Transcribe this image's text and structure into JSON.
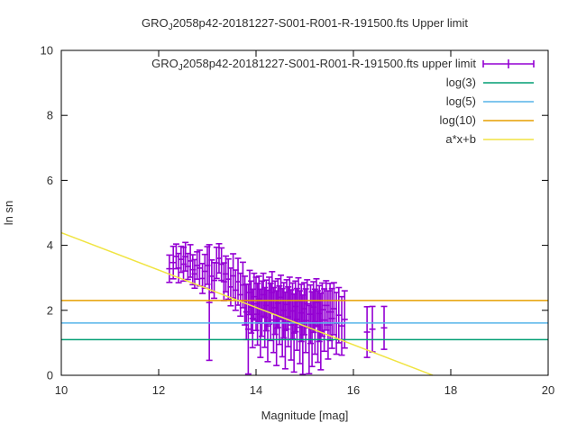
{
  "window": {
    "background": "#ffffff",
    "text_color": "#303030"
  },
  "title": {
    "prefix": "GRO",
    "subscript": "J",
    "rest": "2058p42-20181227-S001-R001-R-191500.fts Upper limit",
    "full": "GRO_J2058p42-20181227-S001-R001-R-191500.fts Upper limit"
  },
  "chart_data": {
    "type": "scatter",
    "title": "GRO_J2058p42-20181227-S001-R001-R-191500.fts Upper limit",
    "xlabel": "Magnitude [mag]",
    "ylabel": "ln sn",
    "xlim": [
      10,
      20
    ],
    "ylim": [
      0,
      10
    ],
    "xticks": [
      10,
      12,
      14,
      16,
      18,
      20
    ],
    "yticks": [
      0,
      2,
      4,
      6,
      8,
      10
    ],
    "grid": false,
    "legend_position": "top-right-inside",
    "series": [
      {
        "name": "GRO_J2058p42-20181227-S001-R001-R-191500.fts upper limit",
        "name_parts": {
          "prefix": "GRO",
          "subscript": "J",
          "rest": "2058p42-20181227-S001-R001-R-191500.fts upper limit"
        },
        "type": "errorbars",
        "color": "#9400D3",
        "points": [
          [
            12.22,
            3.28,
            0.42
          ],
          [
            12.3,
            3.47,
            0.5
          ],
          [
            12.36,
            3.66,
            0.38
          ],
          [
            12.41,
            3.3,
            0.45
          ],
          [
            12.46,
            3.57,
            0.4
          ],
          [
            12.51,
            3.42,
            0.52
          ],
          [
            12.55,
            3.65,
            0.44
          ],
          [
            12.6,
            3.35,
            0.4
          ],
          [
            12.65,
            3.52,
            0.5
          ],
          [
            12.7,
            3.25,
            0.46
          ],
          [
            12.74,
            3.12,
            0.44
          ],
          [
            12.79,
            3.38,
            0.42
          ],
          [
            12.84,
            3.3,
            0.55
          ],
          [
            12.9,
            2.98,
            0.46
          ],
          [
            12.95,
            3.2,
            0.52
          ],
          [
            13.0,
            3.38,
            0.58
          ],
          [
            13.04,
            2.24,
            1.78
          ],
          [
            13.09,
            3.05,
            0.5
          ],
          [
            13.14,
            2.92,
            0.55
          ],
          [
            13.19,
            3.46,
            0.48
          ],
          [
            13.24,
            3.6,
            0.45
          ],
          [
            13.29,
            3.42,
            0.5
          ],
          [
            13.34,
            2.88,
            0.58
          ],
          [
            13.38,
            3.12,
            0.55
          ],
          [
            13.43,
            2.96,
            0.62
          ],
          [
            13.48,
            2.72,
            0.58
          ],
          [
            13.53,
            3.06,
            0.68
          ],
          [
            13.58,
            2.62,
            0.62
          ],
          [
            13.63,
            2.88,
            0.72
          ],
          [
            13.68,
            2.48,
            0.66
          ],
          [
            13.73,
            2.78,
            0.7
          ],
          [
            13.77,
            2.3,
            0.75
          ],
          [
            13.8,
            1.95,
            0.85
          ],
          [
            13.84,
            1.42,
            1.38
          ],
          [
            13.87,
            2.55,
            0.68
          ],
          [
            13.9,
            2.1,
            0.8
          ],
          [
            13.93,
            1.75,
            0.9
          ],
          [
            13.96,
            2.42,
            0.72
          ],
          [
            14.0,
            2.2,
            0.82
          ],
          [
            14.03,
            1.88,
            0.95
          ],
          [
            14.06,
            2.35,
            0.7
          ],
          [
            14.09,
            1.6,
            1.05
          ],
          [
            14.12,
            2.05,
            0.85
          ],
          [
            14.15,
            2.48,
            0.66
          ],
          [
            14.18,
            1.78,
            0.92
          ],
          [
            14.21,
            2.15,
            0.78
          ],
          [
            14.24,
            1.52,
            1.1
          ],
          [
            14.27,
            2.3,
            0.72
          ],
          [
            14.3,
            1.95,
            0.88
          ],
          [
            14.33,
            2.55,
            0.64
          ],
          [
            14.36,
            1.7,
            1.0
          ],
          [
            14.39,
            2.08,
            0.82
          ],
          [
            14.42,
            1.45,
            1.15
          ],
          [
            14.45,
            2.22,
            0.75
          ],
          [
            14.48,
            1.85,
            0.9
          ],
          [
            14.51,
            2.4,
            0.68
          ],
          [
            14.54,
            1.62,
            1.05
          ],
          [
            14.57,
            2.0,
            0.85
          ],
          [
            14.6,
            1.38,
            1.18
          ],
          [
            14.63,
            2.18,
            0.76
          ],
          [
            14.66,
            1.8,
            0.92
          ],
          [
            14.69,
            2.32,
            0.7
          ],
          [
            14.72,
            1.55,
            1.08
          ],
          [
            14.75,
            1.98,
            0.86
          ],
          [
            14.78,
            1.3,
            1.2
          ],
          [
            14.81,
            2.12,
            0.78
          ],
          [
            14.84,
            1.72,
            0.95
          ],
          [
            14.87,
            2.28,
            0.72
          ],
          [
            14.9,
            1.48,
            1.12
          ],
          [
            14.93,
            1.92,
            0.88
          ],
          [
            14.96,
            1.25,
            1.22
          ],
          [
            14.99,
            2.05,
            0.8
          ],
          [
            15.02,
            1.68,
            0.98
          ],
          [
            15.05,
            2.2,
            0.74
          ],
          [
            15.09,
            1.1,
            1.05
          ],
          [
            15.12,
            1.88,
            0.9
          ],
          [
            15.15,
            1.42,
            1.15
          ],
          [
            15.18,
            2.1,
            0.78
          ],
          [
            15.21,
            1.65,
            1.0
          ],
          [
            15.24,
            2.25,
            0.72
          ],
          [
            15.27,
            1.5,
            1.1
          ],
          [
            15.3,
            1.9,
            0.86
          ],
          [
            15.33,
            1.35,
            1.18
          ],
          [
            15.36,
            2.02,
            0.82
          ],
          [
            15.4,
            1.7,
            0.96
          ],
          [
            15.44,
            2.15,
            0.76
          ],
          [
            15.48,
            1.55,
            1.05
          ],
          [
            15.52,
            1.95,
            0.88
          ],
          [
            15.56,
            1.75,
            0.92
          ],
          [
            15.6,
            2.05,
            0.8
          ],
          [
            15.65,
            1.6,
            0.95
          ],
          [
            15.7,
            1.85,
            0.85
          ],
          [
            15.76,
            1.52,
            0.9
          ],
          [
            15.82,
            1.72,
            0.88
          ],
          [
            16.28,
            1.33,
            0.78
          ],
          [
            16.39,
            1.42,
            0.7
          ],
          [
            16.63,
            1.46,
            0.66
          ]
        ]
      },
      {
        "name": "log(3)",
        "type": "hline",
        "y": 1.0986,
        "color": "#009E73"
      },
      {
        "name": "log(5)",
        "type": "hline",
        "y": 1.6094,
        "color": "#56B4E9"
      },
      {
        "name": "log(10)",
        "type": "hline",
        "y": 2.3026,
        "color": "#E69F00"
      },
      {
        "name": "a*x+b",
        "type": "segment",
        "a": -0.575,
        "b": 10.14,
        "x_start": 10,
        "x_end": 17.63,
        "color": "#F0E442"
      }
    ]
  }
}
